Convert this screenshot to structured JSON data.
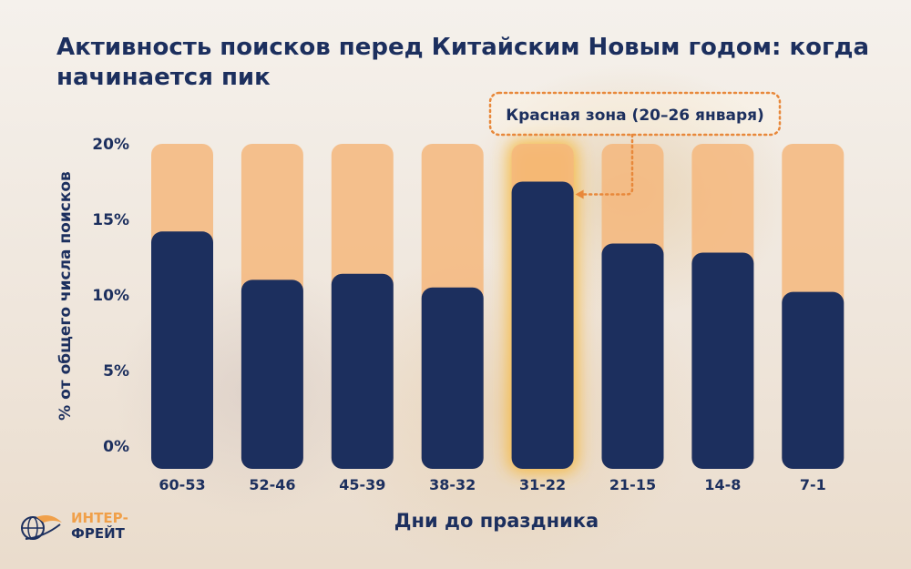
{
  "chart_data": {
    "type": "bar",
    "title": "Активность поисков перед Китайским Новым годом: когда начинается пик",
    "xlabel": "Дни до праздника",
    "ylabel": "% от общего числа поисков",
    "categories": [
      "60-53",
      "52-46",
      "45-39",
      "38-32",
      "31-22",
      "21-15",
      "14-8",
      "7-1"
    ],
    "values": [
      14.2,
      11.0,
      11.4,
      10.5,
      17.5,
      13.4,
      12.8,
      10.2
    ],
    "ylim": [
      0,
      20
    ],
    "yticks": [
      "0%",
      "5%",
      "10%",
      "15%",
      "20%"
    ],
    "ytick_values": [
      0,
      5,
      10,
      15,
      20
    ],
    "grid": false,
    "highlight_index": 4,
    "annotation": "Красная зона (20–26 января)",
    "colors": {
      "bar": "#1c2f5e",
      "track": "#f4b77d",
      "highlight_glow": "#f7b52e",
      "annotation": "#e8883a"
    }
  },
  "logo": {
    "line1": "ИНТЕР-",
    "line2": "ФРЕЙТ"
  }
}
